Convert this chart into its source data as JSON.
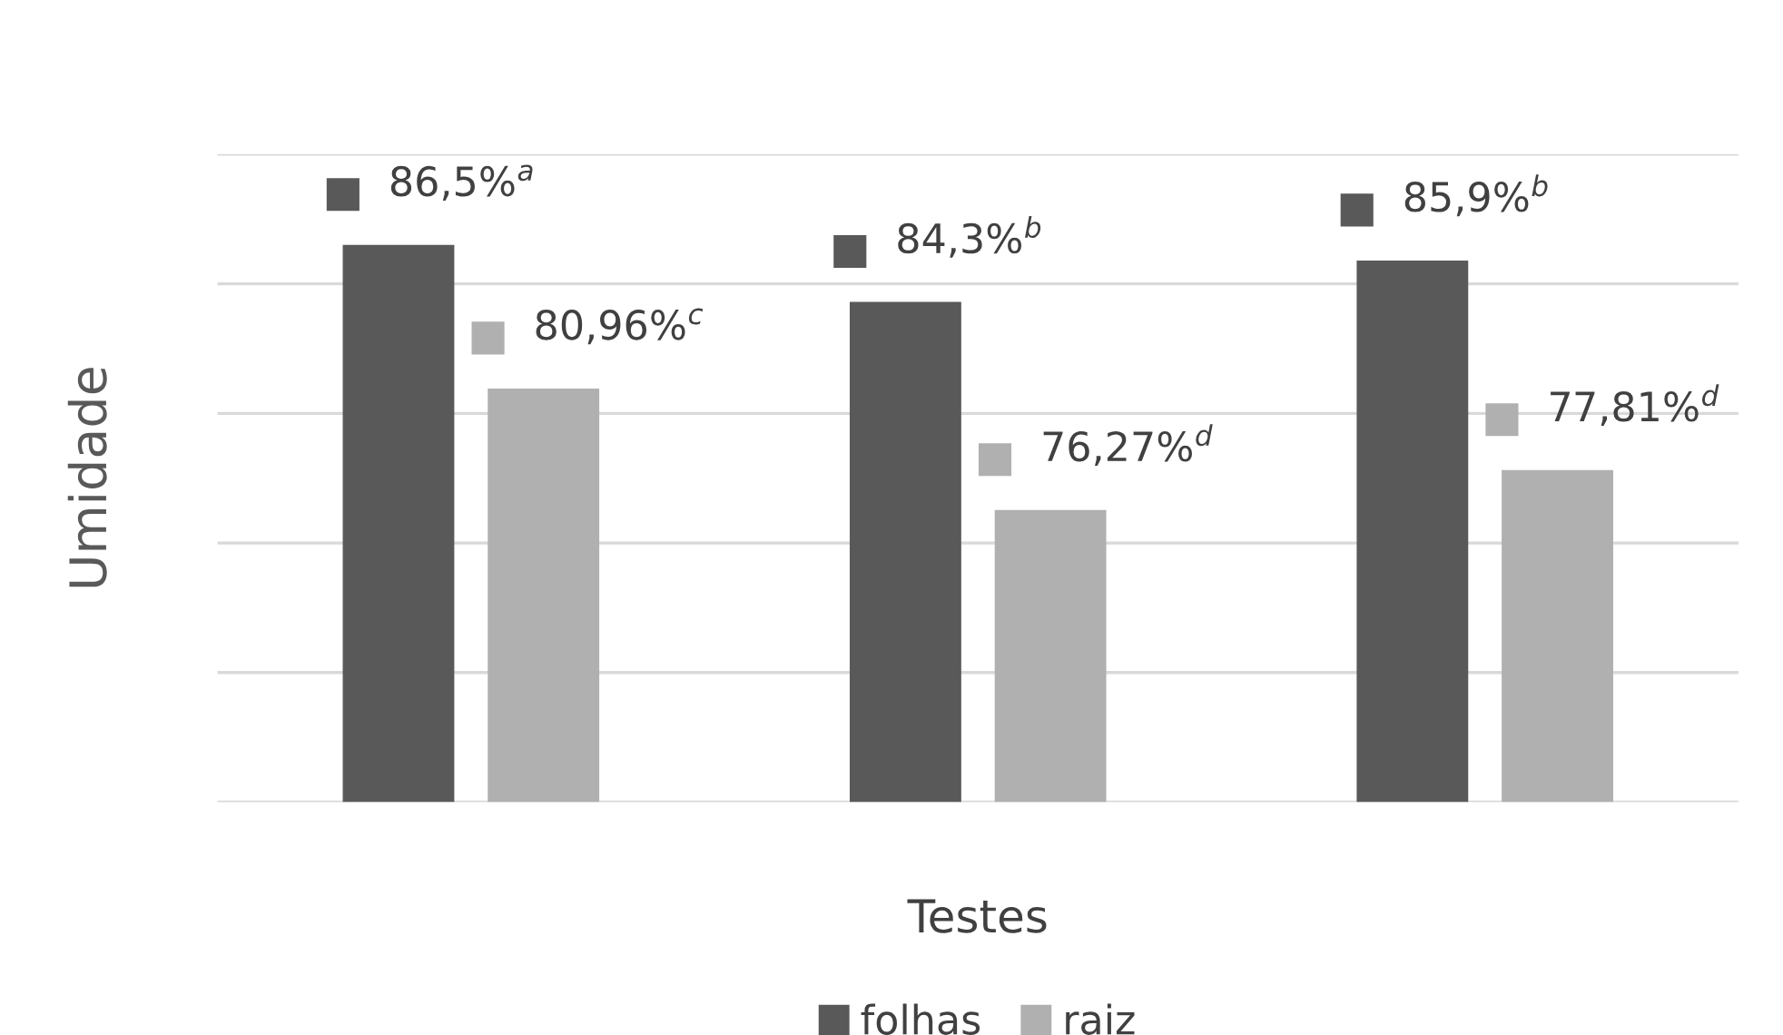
{
  "chart_data": {
    "type": "bar",
    "ylabel": "Umidade",
    "xlabel": "Testes",
    "categories": [
      null,
      null,
      null
    ],
    "series": [
      {
        "name": "folhas",
        "color": "#595959",
        "values": [
          86.5,
          84.3,
          85.9
        ],
        "value_labels": [
          "86,5%$^{a}$",
          "84,3%$^{b}$",
          "85,9%$^{b}$"
        ]
      },
      {
        "name": "raiz",
        "color": "#b0b0b0",
        "values": [
          80.96,
          76.27,
          77.81
        ],
        "value_labels": [
          "80,96%$^{c}$",
          "76,27%$^{d}$",
          "77,81%$^{d}$"
        ]
      }
    ],
    "ylim": [
      65,
      90
    ],
    "yticks": [
      {
        "value": 65,
        "label": null
      },
      {
        "value": 70,
        "label": null
      },
      {
        "value": 75,
        "label": null
      },
      {
        "value": 80,
        "label": null
      },
      {
        "value": 85,
        "label": null
      },
      {
        "value": 90,
        "label": null
      }
    ],
    "grid": "y",
    "legend": "bottom",
    "tick_labels": false
  }
}
